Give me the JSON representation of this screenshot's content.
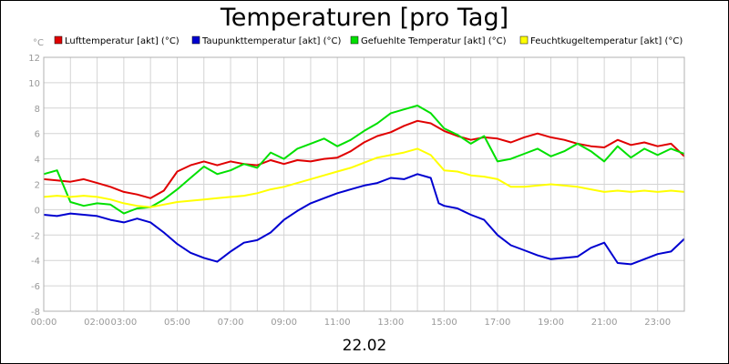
{
  "chart_data": {
    "type": "line",
    "title": "Temperaturen [pro Tag]",
    "ylabel": "°C",
    "xlabel": "22.02",
    "ylim": [
      -8,
      12
    ],
    "yticks": [
      "-8",
      "-6",
      "-4",
      "-2",
      "0",
      "2",
      "4",
      "6",
      "8",
      "10",
      "12"
    ],
    "xlim_hours": [
      0,
      24
    ],
    "xticks": [
      {
        "h": 0,
        "label": "00:00"
      },
      {
        "h": 2,
        "label": "02:00"
      },
      {
        "h": 3,
        "label": "03:00"
      },
      {
        "h": 5,
        "label": "05:00"
      },
      {
        "h": 7,
        "label": "07:00"
      },
      {
        "h": 9,
        "label": "09:00"
      },
      {
        "h": 11,
        "label": "11:00"
      },
      {
        "h": 13,
        "label": "13:00"
      },
      {
        "h": 15,
        "label": "15:00"
      },
      {
        "h": 17,
        "label": "17:00"
      },
      {
        "h": 19,
        "label": "19:00"
      },
      {
        "h": 21,
        "label": "21:00"
      },
      {
        "h": 23,
        "label": "23:00"
      }
    ],
    "grid": true,
    "legend_position": "top",
    "series": [
      {
        "name": "Lufttemperatur [akt] (°C)",
        "color": "#e00000",
        "points": [
          [
            0,
            2.4
          ],
          [
            0.5,
            2.3
          ],
          [
            1,
            2.2
          ],
          [
            1.5,
            2.4
          ],
          [
            2,
            2.1
          ],
          [
            2.5,
            1.8
          ],
          [
            3,
            1.4
          ],
          [
            3.5,
            1.2
          ],
          [
            4,
            0.9
          ],
          [
            4.5,
            1.5
          ],
          [
            5,
            3.0
          ],
          [
            5.5,
            3.5
          ],
          [
            6,
            3.8
          ],
          [
            6.5,
            3.5
          ],
          [
            7,
            3.8
          ],
          [
            7.5,
            3.6
          ],
          [
            8,
            3.5
          ],
          [
            8.5,
            3.9
          ],
          [
            9,
            3.6
          ],
          [
            9.5,
            3.9
          ],
          [
            10,
            3.8
          ],
          [
            10.5,
            4.0
          ],
          [
            11,
            4.1
          ],
          [
            11.5,
            4.6
          ],
          [
            12,
            5.3
          ],
          [
            12.5,
            5.8
          ],
          [
            13,
            6.1
          ],
          [
            13.5,
            6.6
          ],
          [
            14,
            7.0
          ],
          [
            14.5,
            6.8
          ],
          [
            15,
            6.2
          ],
          [
            15.5,
            5.8
          ],
          [
            16,
            5.5
          ],
          [
            16.5,
            5.7
          ],
          [
            17,
            5.6
          ],
          [
            17.5,
            5.3
          ],
          [
            18,
            5.7
          ],
          [
            18.5,
            6.0
          ],
          [
            19,
            5.7
          ],
          [
            19.5,
            5.5
          ],
          [
            20,
            5.2
          ],
          [
            20.5,
            5.0
          ],
          [
            21,
            4.9
          ],
          [
            21.5,
            5.5
          ],
          [
            22,
            5.1
          ],
          [
            22.5,
            5.3
          ],
          [
            23,
            5.0
          ],
          [
            23.5,
            5.2
          ],
          [
            24,
            4.2
          ]
        ]
      },
      {
        "name": "Taupunkttemperatur [akt] (°C)",
        "color": "#0000d0",
        "points": [
          [
            0,
            -0.4
          ],
          [
            0.5,
            -0.5
          ],
          [
            1,
            -0.3
          ],
          [
            1.5,
            -0.4
          ],
          [
            2,
            -0.5
          ],
          [
            2.5,
            -0.8
          ],
          [
            3,
            -1.0
          ],
          [
            3.5,
            -0.7
          ],
          [
            4,
            -1.0
          ],
          [
            4.5,
            -1.8
          ],
          [
            5,
            -2.7
          ],
          [
            5.5,
            -3.4
          ],
          [
            6,
            -3.8
          ],
          [
            6.5,
            -4.1
          ],
          [
            7,
            -3.3
          ],
          [
            7.5,
            -2.6
          ],
          [
            8,
            -2.4
          ],
          [
            8.5,
            -1.8
          ],
          [
            9,
            -0.8
          ],
          [
            9.5,
            -0.1
          ],
          [
            10,
            0.5
          ],
          [
            10.5,
            0.9
          ],
          [
            11,
            1.3
          ],
          [
            11.5,
            1.6
          ],
          [
            12,
            1.9
          ],
          [
            12.5,
            2.1
          ],
          [
            13,
            2.5
          ],
          [
            13.5,
            2.4
          ],
          [
            14,
            2.8
          ],
          [
            14.5,
            2.5
          ],
          [
            14.8,
            0.5
          ],
          [
            15,
            0.3
          ],
          [
            15.5,
            0.1
          ],
          [
            16,
            -0.4
          ],
          [
            16.5,
            -0.8
          ],
          [
            17,
            -2.0
          ],
          [
            17.5,
            -2.8
          ],
          [
            18,
            -3.2
          ],
          [
            18.5,
            -3.6
          ],
          [
            19,
            -3.9
          ],
          [
            19.5,
            -3.8
          ],
          [
            20,
            -3.7
          ],
          [
            20.5,
            -3.0
          ],
          [
            21,
            -2.6
          ],
          [
            21.5,
            -4.2
          ],
          [
            22,
            -4.3
          ],
          [
            22.5,
            -3.9
          ],
          [
            23,
            -3.5
          ],
          [
            23.5,
            -3.3
          ],
          [
            24,
            -2.3
          ]
        ]
      },
      {
        "name": "Gefuehlte Temperatur [akt] (°C)",
        "color": "#00e000",
        "points": [
          [
            0,
            2.8
          ],
          [
            0.5,
            3.1
          ],
          [
            1,
            0.6
          ],
          [
            1.5,
            0.3
          ],
          [
            2,
            0.5
          ],
          [
            2.5,
            0.4
          ],
          [
            3,
            -0.3
          ],
          [
            3.5,
            0.1
          ],
          [
            4,
            0.2
          ],
          [
            4.5,
            0.8
          ],
          [
            5,
            1.6
          ],
          [
            5.5,
            2.5
          ],
          [
            6,
            3.4
          ],
          [
            6.5,
            2.8
          ],
          [
            7,
            3.1
          ],
          [
            7.5,
            3.6
          ],
          [
            8,
            3.3
          ],
          [
            8.5,
            4.5
          ],
          [
            9,
            4.0
          ],
          [
            9.5,
            4.8
          ],
          [
            10,
            5.2
          ],
          [
            10.5,
            5.6
          ],
          [
            11,
            5.0
          ],
          [
            11.5,
            5.5
          ],
          [
            12,
            6.2
          ],
          [
            12.5,
            6.8
          ],
          [
            13,
            7.6
          ],
          [
            13.5,
            7.9
          ],
          [
            14,
            8.2
          ],
          [
            14.5,
            7.6
          ],
          [
            15,
            6.4
          ],
          [
            15.5,
            5.9
          ],
          [
            16,
            5.2
          ],
          [
            16.5,
            5.8
          ],
          [
            17,
            3.8
          ],
          [
            17.5,
            4.0
          ],
          [
            18,
            4.4
          ],
          [
            18.5,
            4.8
          ],
          [
            19,
            4.2
          ],
          [
            19.5,
            4.6
          ],
          [
            20,
            5.2
          ],
          [
            20.5,
            4.6
          ],
          [
            21,
            3.8
          ],
          [
            21.5,
            5.0
          ],
          [
            22,
            4.1
          ],
          [
            22.5,
            4.8
          ],
          [
            23,
            4.3
          ],
          [
            23.5,
            4.8
          ],
          [
            24,
            4.4
          ]
        ]
      },
      {
        "name": "Feuchtkugeltemperatur [akt] (°C)",
        "color": "#ffff00",
        "points": [
          [
            0,
            1.0
          ],
          [
            0.5,
            1.1
          ],
          [
            1,
            1.0
          ],
          [
            1.5,
            1.1
          ],
          [
            2,
            1.0
          ],
          [
            2.5,
            0.8
          ],
          [
            3,
            0.5
          ],
          [
            3.5,
            0.3
          ],
          [
            4,
            0.2
          ],
          [
            4.5,
            0.4
          ],
          [
            5,
            0.6
          ],
          [
            5.5,
            0.7
          ],
          [
            6,
            0.8
          ],
          [
            6.5,
            0.9
          ],
          [
            7,
            1.0
          ],
          [
            7.5,
            1.1
          ],
          [
            8,
            1.3
          ],
          [
            8.5,
            1.6
          ],
          [
            9,
            1.8
          ],
          [
            9.5,
            2.1
          ],
          [
            10,
            2.4
          ],
          [
            10.5,
            2.7
          ],
          [
            11,
            3.0
          ],
          [
            11.5,
            3.3
          ],
          [
            12,
            3.7
          ],
          [
            12.5,
            4.1
          ],
          [
            13,
            4.3
          ],
          [
            13.5,
            4.5
          ],
          [
            14,
            4.8
          ],
          [
            14.5,
            4.3
          ],
          [
            15,
            3.1
          ],
          [
            15.5,
            3.0
          ],
          [
            16,
            2.7
          ],
          [
            16.5,
            2.6
          ],
          [
            17,
            2.4
          ],
          [
            17.5,
            1.8
          ],
          [
            18,
            1.8
          ],
          [
            18.5,
            1.9
          ],
          [
            19,
            2.0
          ],
          [
            19.5,
            1.9
          ],
          [
            20,
            1.8
          ],
          [
            20.5,
            1.6
          ],
          [
            21,
            1.4
          ],
          [
            21.5,
            1.5
          ],
          [
            22,
            1.4
          ],
          [
            22.5,
            1.5
          ],
          [
            23,
            1.4
          ],
          [
            23.5,
            1.5
          ],
          [
            24,
            1.4
          ]
        ]
      }
    ]
  }
}
